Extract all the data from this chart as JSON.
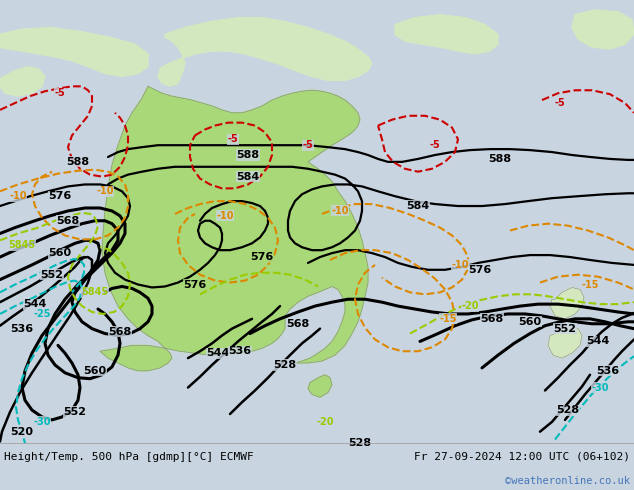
{
  "title_left": "Height/Temp. 500 hPa [gdmp][°C] ECMWF",
  "title_right": "Fr 27-09-2024 12:00 UTC (06+102)",
  "watermark": "©weatheronline.co.uk",
  "bg_ocean": "#c8d4e0",
  "bg_land": "#d4e8c0",
  "australia_fill": "#a8d878",
  "land_other_fill": "#d4e8c0",
  "bottom_bar_color": "#e0e0e0",
  "text_color": "#000000",
  "watermark_color": "#4477bb",
  "fig_width": 6.34,
  "fig_height": 4.9,
  "dpi": 100
}
